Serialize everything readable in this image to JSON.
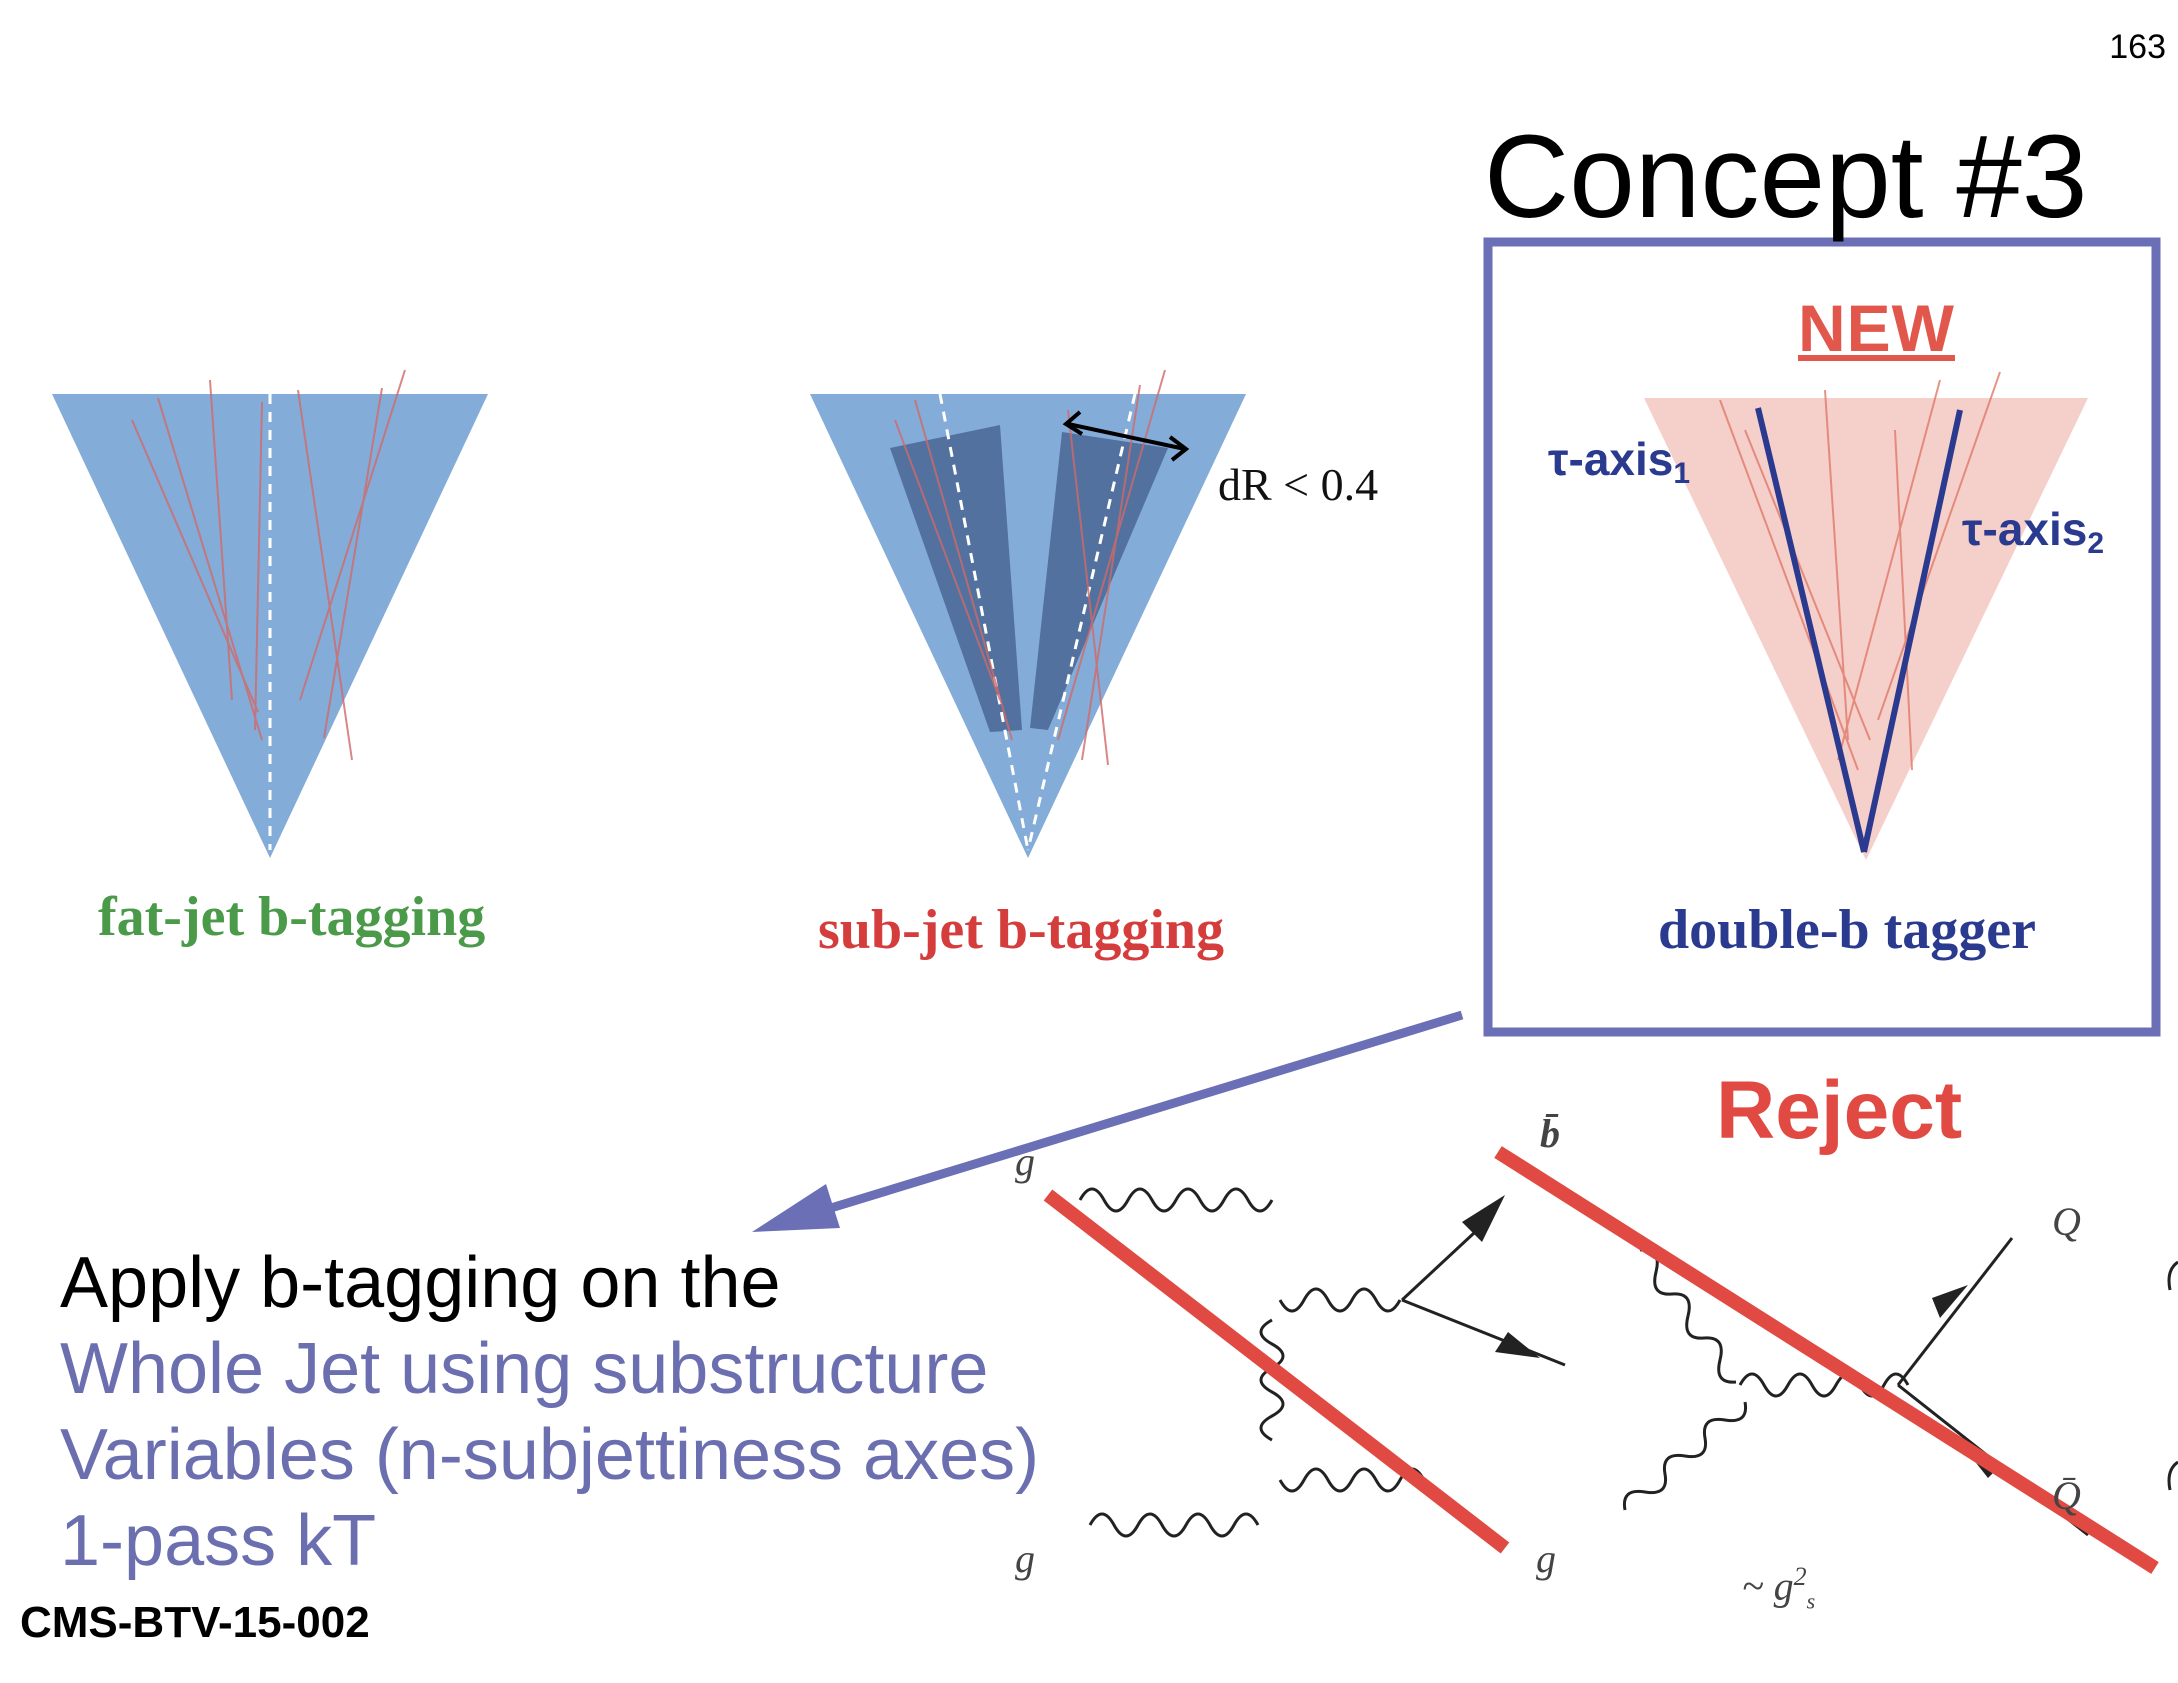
{
  "page": {
    "number": "163"
  },
  "title": "Concept #3",
  "panels": {
    "fat_jet": {
      "label": "fat-jet b-tagging"
    },
    "sub_jet": {
      "label": "sub-jet b-tagging",
      "annotation": "dR < 0.4"
    },
    "double_b": {
      "label": "double-b tagger",
      "badge": "NEW",
      "axis1": "τ-axis",
      "axis1_sub": "1",
      "axis2": "τ-axis",
      "axis2_sub": "2"
    }
  },
  "reject_label": "Reject",
  "body": {
    "line1": "Apply b-tagging on the",
    "line2": "Whole Jet using substructure",
    "line3": "Variables (n-subjettiness axes)",
    "line4": "1-pass kT"
  },
  "reference": "CMS-BTV-15-002",
  "feynman": {
    "d1_top_left": "g",
    "d1_bottom_left": "g",
    "d1_bottom_right": "g",
    "d1_top_right": "b̄",
    "d2_top_right": "Q",
    "d2_bottom_right": "Q̄",
    "d2_coupling": "~ g",
    "d2_coupling_sup": "2",
    "d2_coupling_sub": "s"
  },
  "colors": {
    "jet_blue": "#84acd8",
    "subjet_dark": "#4c6a98",
    "jet_pink": "#f5cfca",
    "frame": "#6b6fb5",
    "reject_red": "#e04a42",
    "tagger_blue": "#2a3a8e"
  }
}
